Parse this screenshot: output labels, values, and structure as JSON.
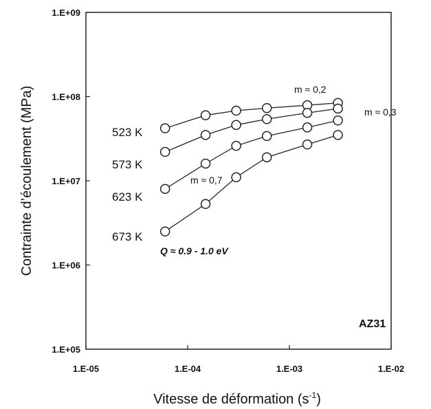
{
  "chart_data": {
    "type": "line",
    "title": "",
    "xlabel_main": "Vitesse de déformation (s",
    "xlabel_sup": "-1",
    "xlabel_end": ")",
    "ylabel": "Contrainte d’écoulement  (MPa)",
    "xscale": "log",
    "yscale": "log",
    "xlim": [
      1e-05,
      0.01
    ],
    "ylim": [
      100000,
      1000000000
    ],
    "grid": false,
    "legend": "none",
    "x_ticks": [
      "1.E-05",
      "1.E-04",
      "1.E-03",
      "1.E-02"
    ],
    "y_ticks": [
      "1.E+05",
      "1.E+06",
      "1.E+07",
      "1.E+08",
      "1.E+09"
    ],
    "material_label": "AZ31",
    "annotations": {
      "m_02": "m ≈ 0,2",
      "m_03": "m ≈ 0,3",
      "m_07": "m ≈ 0,7",
      "activation": "Q ≈ 0.9 - 1.0 eV"
    },
    "series": [
      {
        "name": "523 K",
        "x": [
          6e-05,
          0.00015,
          0.0003,
          0.0006,
          0.0015,
          0.003
        ],
        "y": [
          42000000,
          60000000,
          68000000,
          73000000,
          79000000,
          84000000
        ]
      },
      {
        "name": "573 K",
        "x": [
          6e-05,
          0.00015,
          0.0003,
          0.0006,
          0.0015,
          0.003
        ],
        "y": [
          22000000,
          35000000,
          46000000,
          54000000,
          64000000,
          72000000
        ]
      },
      {
        "name": "623 K",
        "x": [
          6e-05,
          0.00015,
          0.0003,
          0.0006,
          0.0015,
          0.003
        ],
        "y": [
          8000000,
          16000000,
          26000000,
          34000000,
          43000000,
          52000000
        ]
      },
      {
        "name": "673 K",
        "x": [
          6e-05,
          0.00015,
          0.0003,
          0.0006,
          0.0015,
          0.003
        ],
        "y": [
          2500000,
          5300000,
          11000000,
          19000000,
          27000000,
          35000000
        ]
      }
    ]
  }
}
